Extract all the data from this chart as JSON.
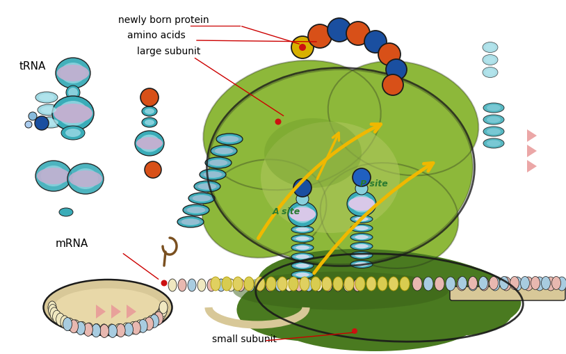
{
  "background_color": "#ffffff",
  "labels": {
    "newly_born_protein": "newly born protein",
    "amino_acids": "amino acids",
    "large_subunit": "large subunit",
    "trna": "tRNA",
    "mrna": "mRNA",
    "small_subunit": "small subunit",
    "a_site": "A site",
    "p_site": "P site"
  },
  "colors": {
    "large_subunit_green": "#8db83a",
    "large_subunit_green_light": "#a8c84a",
    "large_subunit_green_dark": "#6a9828",
    "small_subunit_green": "#4a7a20",
    "small_subunit_green2": "#3a6018",
    "tunnel_color": "#b0c860",
    "trna_teal": "#3aacb8",
    "trna_teal_light": "#88d0dc",
    "trna_teal_lighter": "#b8e8f0",
    "trna_teal_dark": "#1e7a88",
    "trna_lavender": "#c0b0d0",
    "trna_lavender2": "#d8c8e8",
    "protein_blue": "#1a4fa0",
    "protein_blue2": "#2060c0",
    "protein_orange": "#d85018",
    "protein_orange2": "#e87030",
    "protein_yellow": "#d8b000",
    "mrna_tan": "#d8c898",
    "mrna_tan2": "#e8d8a8",
    "mrna_pink": "#e8b8b0",
    "mrna_blue_light": "#a8cce0",
    "mrna_cream": "#f0e8c0",
    "mrna_yellow_green": "#d8d888",
    "mrna_yellow": "#e0d060",
    "arrow_yellow": "#f0b800",
    "arrow_orange": "#e08000",
    "red_dot": "#cc1111",
    "dark_outline": "#1a1a1a",
    "label_red_line": "#cc0000",
    "pink_triangle": "#e89898",
    "brown_hook": "#7a5020"
  },
  "figsize": [
    8.14,
    5.09
  ],
  "dpi": 100
}
